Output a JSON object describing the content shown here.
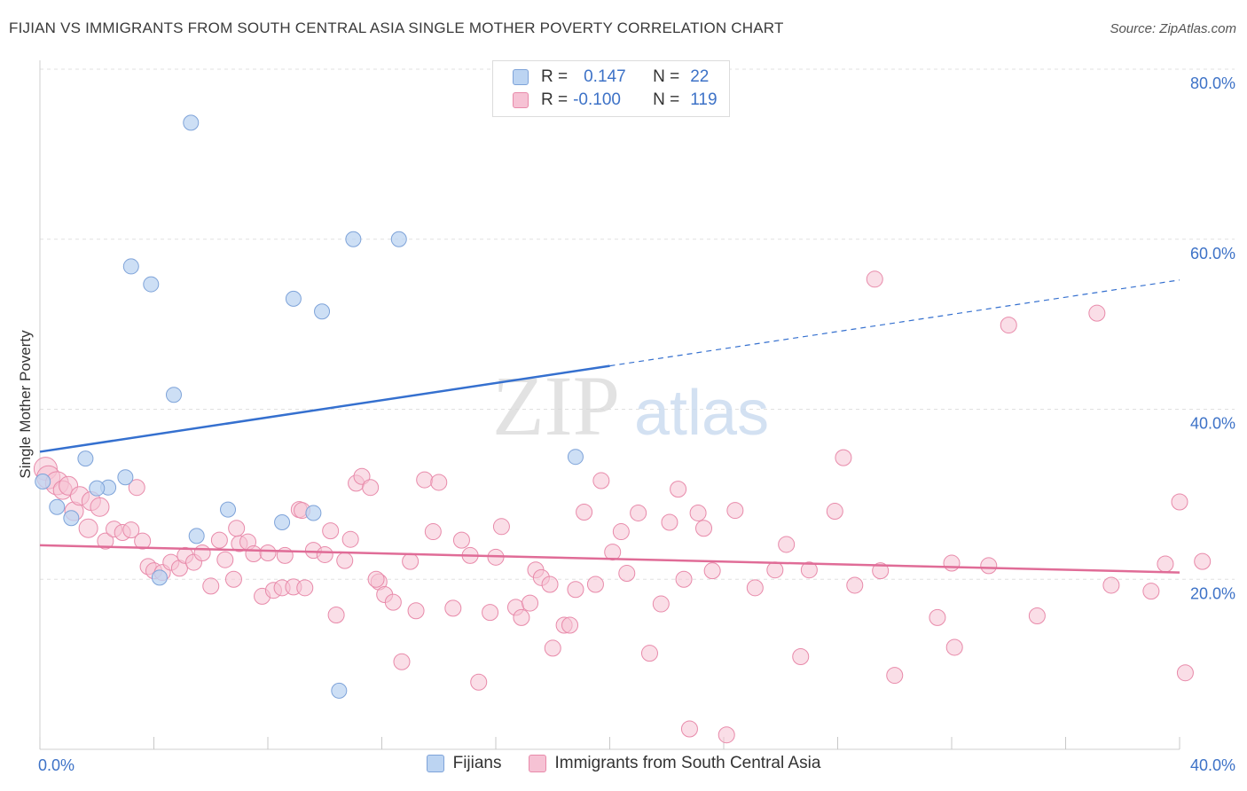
{
  "header": {
    "title": "FIJIAN VS IMMIGRANTS FROM SOUTH CENTRAL ASIA SINGLE MOTHER POVERTY CORRELATION CHART",
    "source": "Source: ZipAtlas.com"
  },
  "watermark": {
    "zip": "ZIP",
    "atlas": "atlas"
  },
  "legend": {
    "rows": [
      {
        "r_label": "R =",
        "r_value": "0.147",
        "n_label": "N =",
        "n_value": "22"
      },
      {
        "r_label": "R =",
        "r_value": "-0.100",
        "n_label": "N =",
        "n_value": "119"
      }
    ]
  },
  "bottom_legend": {
    "series1": "Fijians",
    "series2": "Immigrants from South Central Asia"
  },
  "colors": {
    "blue_fill": "#bcd4f2",
    "blue_stroke": "#7ea3d9",
    "blue_line": "#3570cf",
    "pink_fill": "#f6c2d4",
    "pink_stroke": "#e88aaa",
    "pink_line": "#e06c97",
    "axis_label": "#3d72c7",
    "grid": "#e0e0e0"
  },
  "chart_data": {
    "type": "scatter",
    "title": "FIJIAN VS IMMIGRANTS FROM SOUTH CENTRAL ASIA SINGLE MOTHER POVERTY CORRELATION CHART",
    "xlabel": "",
    "ylabel": "Single Mother Poverty",
    "xlim": [
      0,
      40
    ],
    "ylim": [
      0,
      80
    ],
    "x_tick_labels": {
      "left": "0.0%",
      "right": "40.0%"
    },
    "y_ticks": [
      {
        "value": 20,
        "label": "20.0%"
      },
      {
        "value": 40,
        "label": "40.0%"
      },
      {
        "value": 60,
        "label": "60.0%"
      },
      {
        "value": 80,
        "label": "80.0%"
      }
    ],
    "grid": true,
    "legend_position": "top-center",
    "series": [
      {
        "name": "Fijians",
        "r": 0.147,
        "n": 22,
        "trend": {
          "x0": 0,
          "y0": 35.0,
          "x1": 20,
          "y1": 45.1,
          "dash_to_x": 40,
          "dash_to_y": 55.2
        },
        "points": [
          [
            0.1,
            31.5
          ],
          [
            0.6,
            28.5
          ],
          [
            1.1,
            27.2
          ],
          [
            1.6,
            34.2
          ],
          [
            2.4,
            30.8
          ],
          [
            2.0,
            30.7
          ],
          [
            3.0,
            32.0
          ],
          [
            3.2,
            56.8
          ],
          [
            3.9,
            54.7
          ],
          [
            4.2,
            20.2
          ],
          [
            4.7,
            41.7
          ],
          [
            5.3,
            73.7
          ],
          [
            5.5,
            25.1
          ],
          [
            6.6,
            28.2
          ],
          [
            8.5,
            26.7
          ],
          [
            8.9,
            53.0
          ],
          [
            9.6,
            27.8
          ],
          [
            9.9,
            51.5
          ],
          [
            10.5,
            6.9
          ],
          [
            11.0,
            60.0
          ],
          [
            12.6,
            60.0
          ],
          [
            18.8,
            34.4
          ]
        ]
      },
      {
        "name": "Immigrants from South Central Asia",
        "r": -0.1,
        "n": 119,
        "trend": {
          "x0": 0,
          "y0": 24.0,
          "x1": 40,
          "y1": 20.8
        },
        "points": [
          [
            0.2,
            33.0
          ],
          [
            0.3,
            32.0
          ],
          [
            0.6,
            31.3
          ],
          [
            0.8,
            30.5
          ],
          [
            1.0,
            31.0
          ],
          [
            1.2,
            28.0
          ],
          [
            1.4,
            29.8
          ],
          [
            1.7,
            26.0
          ],
          [
            1.8,
            29.2
          ],
          [
            2.1,
            28.5
          ],
          [
            2.3,
            24.5
          ],
          [
            2.6,
            25.9
          ],
          [
            2.9,
            25.5
          ],
          [
            3.2,
            25.8
          ],
          [
            3.4,
            30.8
          ],
          [
            3.6,
            24.5
          ],
          [
            3.8,
            21.5
          ],
          [
            4.0,
            21.0
          ],
          [
            4.3,
            20.8
          ],
          [
            4.6,
            22.0
          ],
          [
            4.9,
            21.3
          ],
          [
            5.1,
            22.8
          ],
          [
            5.4,
            22.0
          ],
          [
            5.7,
            23.1
          ],
          [
            6.0,
            19.2
          ],
          [
            6.3,
            24.6
          ],
          [
            6.5,
            22.3
          ],
          [
            6.8,
            20.0
          ],
          [
            7.0,
            24.2
          ],
          [
            7.3,
            24.4
          ],
          [
            7.5,
            23.0
          ],
          [
            7.8,
            18.0
          ],
          [
            8.0,
            23.1
          ],
          [
            8.2,
            18.7
          ],
          [
            8.5,
            19.0
          ],
          [
            8.6,
            22.8
          ],
          [
            8.9,
            19.1
          ],
          [
            9.1,
            28.2
          ],
          [
            9.3,
            19.0
          ],
          [
            9.6,
            23.4
          ],
          [
            10.0,
            22.9
          ],
          [
            10.2,
            25.7
          ],
          [
            10.4,
            15.8
          ],
          [
            10.7,
            22.2
          ],
          [
            10.9,
            24.7
          ],
          [
            11.1,
            31.3
          ],
          [
            11.3,
            32.1
          ],
          [
            11.6,
            30.8
          ],
          [
            11.9,
            19.7
          ],
          [
            12.1,
            18.2
          ],
          [
            12.4,
            17.3
          ],
          [
            12.7,
            10.3
          ],
          [
            13.0,
            22.1
          ],
          [
            13.2,
            16.3
          ],
          [
            13.5,
            31.7
          ],
          [
            13.8,
            25.6
          ],
          [
            14.0,
            31.4
          ],
          [
            14.5,
            16.6
          ],
          [
            14.8,
            24.6
          ],
          [
            15.1,
            22.8
          ],
          [
            15.4,
            7.9
          ],
          [
            15.8,
            16.1
          ],
          [
            16.0,
            22.6
          ],
          [
            16.2,
            26.2
          ],
          [
            16.7,
            16.7
          ],
          [
            16.9,
            15.5
          ],
          [
            17.2,
            17.2
          ],
          [
            17.4,
            21.1
          ],
          [
            17.6,
            20.2
          ],
          [
            17.9,
            19.4
          ],
          [
            18.0,
            11.9
          ],
          [
            18.4,
            14.6
          ],
          [
            18.6,
            14.6
          ],
          [
            18.8,
            18.8
          ],
          [
            19.1,
            27.9
          ],
          [
            19.5,
            19.4
          ],
          [
            19.7,
            31.6
          ],
          [
            20.1,
            23.2
          ],
          [
            20.4,
            25.6
          ],
          [
            20.6,
            20.7
          ],
          [
            21.0,
            27.8
          ],
          [
            21.4,
            11.3
          ],
          [
            21.8,
            17.1
          ],
          [
            22.1,
            26.7
          ],
          [
            22.4,
            30.6
          ],
          [
            22.6,
            20.0
          ],
          [
            22.8,
            2.4
          ],
          [
            23.1,
            27.8
          ],
          [
            23.3,
            26.0
          ],
          [
            23.6,
            21.0
          ],
          [
            24.1,
            1.7
          ],
          [
            24.4,
            28.1
          ],
          [
            25.1,
            19.0
          ],
          [
            25.8,
            21.1
          ],
          [
            26.2,
            24.1
          ],
          [
            26.7,
            10.9
          ],
          [
            27.0,
            21.1
          ],
          [
            27.9,
            28.0
          ],
          [
            28.2,
            34.3
          ],
          [
            28.6,
            19.3
          ],
          [
            29.3,
            55.3
          ],
          [
            29.5,
            21.0
          ],
          [
            30.0,
            8.7
          ],
          [
            31.5,
            15.5
          ],
          [
            32.0,
            21.9
          ],
          [
            32.1,
            12.0
          ],
          [
            33.3,
            21.6
          ],
          [
            34.0,
            49.9
          ],
          [
            35.0,
            15.7
          ],
          [
            37.1,
            51.3
          ],
          [
            37.6,
            19.3
          ],
          [
            39.0,
            18.6
          ],
          [
            39.5,
            21.8
          ],
          [
            40.0,
            29.1
          ],
          [
            40.2,
            9.0
          ],
          [
            40.8,
            22.1
          ],
          [
            11.8,
            20.0
          ],
          [
            9.2,
            28.1
          ],
          [
            6.9,
            26.0
          ]
        ]
      }
    ]
  }
}
